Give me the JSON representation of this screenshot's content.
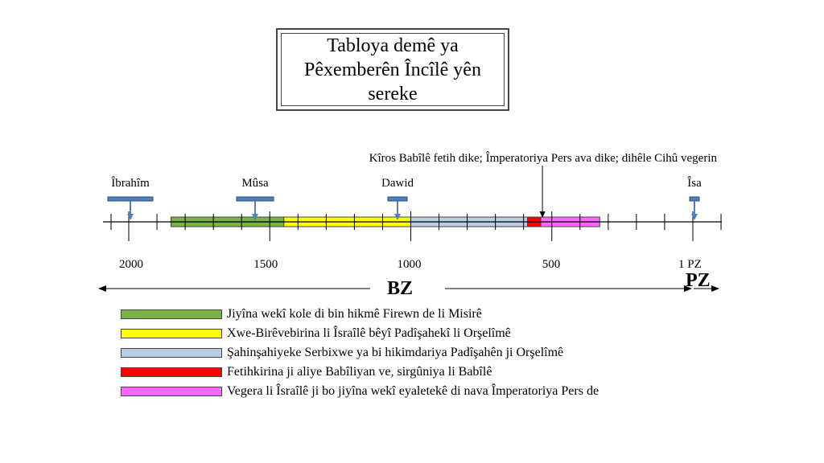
{
  "title": "Tabloya demê ya Pêxemberên Încîlê yên sereke",
  "event_note": "Kîros Babîlê fetih dike; Împeratoriya Pers ava dike; dihêle Cihû vegerin",
  "prophets": [
    {
      "name": "Îbrahîm",
      "year": 2000
    },
    {
      "name": "Mûsa",
      "year": 1500
    },
    {
      "name": "Dawid",
      "year": 1000
    },
    {
      "name": "Îsa",
      "year": 0
    }
  ],
  "axis_labels": [
    {
      "text": "2000",
      "year": 2000
    },
    {
      "text": "1500",
      "year": 1500
    },
    {
      "text": "1000",
      "year": 1000
    },
    {
      "text": "500",
      "year": 500
    },
    {
      "text": "1 PZ",
      "year": 0
    }
  ],
  "era_labels": {
    "bc": "BZ",
    "ad": "PZ"
  },
  "periods": [
    {
      "label": "Jiyîna wekî kole di bin hikmê Firewn de li Misirê",
      "color": "#77b347",
      "start": 1850,
      "end": 1450
    },
    {
      "label": "Xwe-Birêvebirina li Îsraîlê bêyî Padîşahekî li Orşelîmê",
      "color": "#ffff00",
      "start": 1450,
      "end": 1000
    },
    {
      "label": "Şahinşahiyeke Serbixwe ya bi hikimdariya Padîşahên ji Orşelîmê",
      "color": "#b9cde5",
      "start": 1000,
      "end": 586
    },
    {
      "label": "Fetihkirina ji aliye Babîliyan ve, sirgûniya li Babîlê",
      "color": "#ff0000",
      "start": 586,
      "end": 539
    },
    {
      "label": "Vegera li Îsraîlê ji bo jiyîna wekî eyaletekê di nava Împeratoriya Pers de",
      "color": "#ff66ff",
      "start": 539,
      "end": 330
    }
  ],
  "event_year": 539
}
